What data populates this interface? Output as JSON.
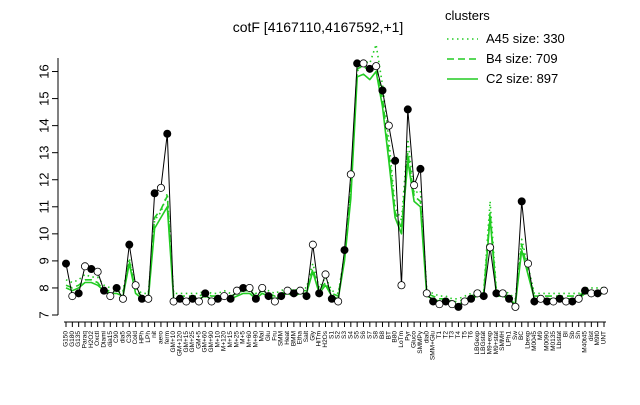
{
  "chart_data": {
    "type": "line",
    "title": "cotF [4167110,4167592,+1]",
    "xlabel": "",
    "ylabel": "",
    "ylim": [
      7,
      16.5
    ],
    "yticks": [
      7,
      8,
      9,
      10,
      11,
      12,
      13,
      14,
      15,
      16
    ],
    "grid": false,
    "legend": {
      "title": "clusters",
      "placement": "top-right",
      "entries": [
        {
          "label": "A45 size: 330",
          "style": "dotted",
          "color": "#22cc22"
        },
        {
          "label": "B4 size: 709",
          "style": "dashed",
          "color": "#22cc22"
        },
        {
          "label": "C2 size: 897",
          "style": "solid",
          "color": "#22cc22"
        }
      ]
    },
    "x_tick_labels": [
      "G150",
      "G180",
      "G135",
      "Paraq",
      "H2O2",
      "Oxctl",
      "Diami",
      "dia15",
      "C90",
      "dia5",
      "C30",
      "Cold",
      "HPh",
      "LPh",
      "nit",
      "aero",
      "ferm",
      "GM+10",
      "GM+120",
      "GM+15",
      "GM+25",
      "GM+5",
      "GM+60",
      "GM+90",
      "M+10",
      "M+120",
      "M+15",
      "M+25",
      "M+5",
      "M+60",
      "M+90",
      "Mal",
      "Glu",
      "Fru",
      "SMM",
      "Heat",
      "BMM",
      "Etha",
      "Salt",
      "Gly",
      "HiTm",
      "H2Os",
      "S1",
      "S2",
      "S3",
      "S4",
      "S5",
      "S6",
      "S7",
      "S8",
      "B8",
      "BT",
      "B80",
      "LoTm",
      "Pyr",
      "Gluco",
      "SMMPy",
      "dia0",
      "SMM+Glu",
      "T1",
      "T2",
      "T3",
      "T4",
      "T5",
      "T6",
      "LBGexp",
      "LBGstat",
      "M9+exp",
      "M9+stat",
      "SMMH",
      "LPh1",
      "Sw",
      "BC",
      "Lbexp",
      "M0045",
      "M9",
      "M0090",
      "M0135",
      "Lbstat",
      "BI",
      "Sb",
      "Sh",
      "M40t45",
      "dist",
      "M9t0",
      "UNT"
    ],
    "series": [
      {
        "name": "cotF",
        "color": "#000000",
        "x": [
          1,
          2,
          3,
          4,
          5,
          6,
          7,
          8,
          9,
          10,
          11,
          12,
          13,
          14,
          15,
          16,
          17,
          18,
          19,
          20,
          21,
          22,
          23,
          24,
          25,
          26,
          27,
          28,
          29,
          30,
          31,
          32,
          33,
          34,
          35,
          36,
          37,
          38,
          39,
          40,
          41,
          42,
          43,
          44,
          45,
          46,
          47,
          48,
          49,
          50,
          51,
          52,
          53,
          54,
          55,
          56,
          57,
          58,
          59,
          60,
          61,
          62,
          63,
          64,
          65,
          66,
          67,
          68,
          69,
          70,
          71,
          72,
          73,
          74,
          75,
          76,
          77,
          78,
          79,
          80,
          81,
          82,
          83,
          84,
          85,
          86
        ],
        "values": [
          8.9,
          7.7,
          7.8,
          8.8,
          8.7,
          8.6,
          7.9,
          7.7,
          8.0,
          7.6,
          9.6,
          8.1,
          7.6,
          7.6,
          11.5,
          11.7,
          13.7,
          7.5,
          7.6,
          7.5,
          7.6,
          7.5,
          7.8,
          7.5,
          7.6,
          7.7,
          7.6,
          7.9,
          8.0,
          8.0,
          7.6,
          8.0,
          7.7,
          7.5,
          7.7,
          7.9,
          7.8,
          7.9,
          7.7,
          9.6,
          7.8,
          8.5,
          7.6,
          7.5,
          9.4,
          12.2,
          16.3,
          16.3,
          16.1,
          16.2,
          15.3,
          14.0,
          12.7,
          8.1,
          14.6,
          11.8,
          12.4,
          7.8,
          7.5,
          7.4,
          7.5,
          7.4,
          7.3,
          7.5,
          7.6,
          7.8,
          7.7,
          9.5,
          7.8,
          7.8,
          7.6,
          7.3,
          11.2,
          8.9,
          7.5,
          7.6,
          7.5,
          7.5,
          7.6,
          7.5,
          7.5,
          7.6,
          7.9,
          7.8,
          7.8,
          7.9
        ]
      },
      {
        "name": "A45 size: 330",
        "color": "#22cc22",
        "x": [
          1,
          2,
          3,
          4,
          5,
          6,
          7,
          8,
          9,
          10,
          11,
          12,
          13,
          14,
          15,
          16,
          17,
          18,
          19,
          20,
          21,
          22,
          23,
          24,
          25,
          26,
          27,
          28,
          29,
          30,
          31,
          32,
          33,
          34,
          35,
          36,
          37,
          38,
          39,
          40,
          41,
          42,
          43,
          44,
          45,
          46,
          47,
          48,
          49,
          50,
          51,
          52,
          53,
          54,
          55,
          56,
          57,
          58,
          59,
          60,
          61,
          62,
          63,
          64,
          65,
          66,
          67,
          68,
          69,
          70,
          71,
          72,
          73,
          74,
          75,
          76,
          77,
          78,
          79,
          80,
          81,
          82,
          83,
          84,
          85,
          86
        ],
        "values": [
          8.3,
          8.2,
          8.3,
          8.5,
          8.4,
          8.4,
          8.1,
          8.0,
          8.0,
          7.9,
          9.1,
          8.0,
          7.8,
          7.8,
          10.5,
          10.8,
          11.5,
          7.8,
          7.8,
          7.8,
          7.8,
          7.8,
          7.9,
          7.8,
          7.8,
          7.9,
          7.8,
          7.9,
          8.0,
          8.0,
          7.8,
          8.0,
          7.9,
          7.8,
          7.9,
          8.0,
          7.9,
          8.0,
          8.0,
          8.9,
          8.0,
          8.4,
          7.9,
          7.8,
          9.2,
          11.5,
          16.0,
          16.4,
          16.3,
          17.0,
          15.5,
          13.5,
          11.0,
          10.5,
          13.5,
          11.5,
          11.6,
          7.9,
          7.8,
          7.7,
          7.7,
          7.6,
          7.6,
          7.7,
          7.8,
          7.9,
          7.9,
          11.2,
          7.9,
          7.9,
          7.8,
          7.6,
          9.8,
          8.8,
          7.8,
          7.8,
          7.8,
          7.8,
          7.8,
          7.8,
          7.8,
          7.8,
          8.0,
          8.0,
          8.0,
          8.0
        ]
      },
      {
        "name": "B4 size: 709",
        "color": "#22cc22",
        "x": [
          1,
          2,
          3,
          4,
          5,
          6,
          7,
          8,
          9,
          10,
          11,
          12,
          13,
          14,
          15,
          16,
          17,
          18,
          19,
          20,
          21,
          22,
          23,
          24,
          25,
          26,
          27,
          28,
          29,
          30,
          31,
          32,
          33,
          34,
          35,
          36,
          37,
          38,
          39,
          40,
          41,
          42,
          43,
          44,
          45,
          46,
          47,
          48,
          49,
          50,
          51,
          52,
          53,
          54,
          55,
          56,
          57,
          58,
          59,
          60,
          61,
          62,
          63,
          64,
          65,
          66,
          67,
          68,
          69,
          70,
          71,
          72,
          73,
          74,
          75,
          76,
          77,
          78,
          79,
          80,
          81,
          82,
          83,
          84,
          85,
          86
        ],
        "values": [
          8.1,
          8.0,
          8.1,
          8.3,
          8.3,
          8.2,
          7.9,
          7.9,
          7.9,
          7.8,
          9.0,
          7.9,
          7.7,
          7.7,
          10.6,
          10.9,
          11.4,
          7.7,
          7.7,
          7.7,
          7.7,
          7.7,
          7.8,
          7.7,
          7.7,
          7.8,
          7.7,
          7.8,
          7.9,
          7.9,
          7.7,
          7.9,
          7.8,
          7.7,
          7.8,
          7.9,
          7.8,
          7.9,
          7.9,
          8.7,
          7.9,
          8.2,
          7.8,
          7.7,
          9.2,
          11.8,
          16.1,
          16.2,
          16.0,
          16.3,
          15.0,
          13.0,
          10.8,
          10.2,
          13.0,
          11.4,
          11.2,
          7.8,
          7.7,
          7.6,
          7.6,
          7.5,
          7.5,
          7.6,
          7.7,
          7.8,
          7.8,
          10.8,
          7.8,
          7.8,
          7.7,
          7.5,
          9.6,
          8.6,
          7.7,
          7.7,
          7.7,
          7.7,
          7.7,
          7.7,
          7.7,
          7.7,
          7.9,
          7.9,
          7.9,
          7.9
        ]
      },
      {
        "name": "C2 size: 897",
        "color": "#22cc22",
        "x": [
          1,
          2,
          3,
          4,
          5,
          6,
          7,
          8,
          9,
          10,
          11,
          12,
          13,
          14,
          15,
          16,
          17,
          18,
          19,
          20,
          21,
          22,
          23,
          24,
          25,
          26,
          27,
          28,
          29,
          30,
          31,
          32,
          33,
          34,
          35,
          36,
          37,
          38,
          39,
          40,
          41,
          42,
          43,
          44,
          45,
          46,
          47,
          48,
          49,
          50,
          51,
          52,
          53,
          54,
          55,
          56,
          57,
          58,
          59,
          60,
          61,
          62,
          63,
          64,
          65,
          66,
          67,
          68,
          69,
          70,
          71,
          72,
          73,
          74,
          75,
          76,
          77,
          78,
          79,
          80,
          81,
          82,
          83,
          84,
          85,
          86
        ],
        "values": [
          8.0,
          7.9,
          8.0,
          8.2,
          8.2,
          8.1,
          7.9,
          7.8,
          7.8,
          7.7,
          8.9,
          7.8,
          7.6,
          7.6,
          10.2,
          10.6,
          11.0,
          7.6,
          7.6,
          7.6,
          7.6,
          7.6,
          7.7,
          7.6,
          7.6,
          7.7,
          7.6,
          7.7,
          7.8,
          7.8,
          7.6,
          7.8,
          7.7,
          7.6,
          7.7,
          7.8,
          7.7,
          7.8,
          7.8,
          8.6,
          7.8,
          8.1,
          7.7,
          7.6,
          9.0,
          11.3,
          15.8,
          15.9,
          15.7,
          16.0,
          14.7,
          12.7,
          10.6,
          10.0,
          12.7,
          11.2,
          11.0,
          7.7,
          7.6,
          7.5,
          7.5,
          7.4,
          7.4,
          7.5,
          7.6,
          7.7,
          7.7,
          10.6,
          7.7,
          7.7,
          7.6,
          7.4,
          9.4,
          8.5,
          7.6,
          7.6,
          7.6,
          7.6,
          7.6,
          7.6,
          7.6,
          7.6,
          7.8,
          7.8,
          7.8,
          7.8
        ]
      }
    ]
  }
}
